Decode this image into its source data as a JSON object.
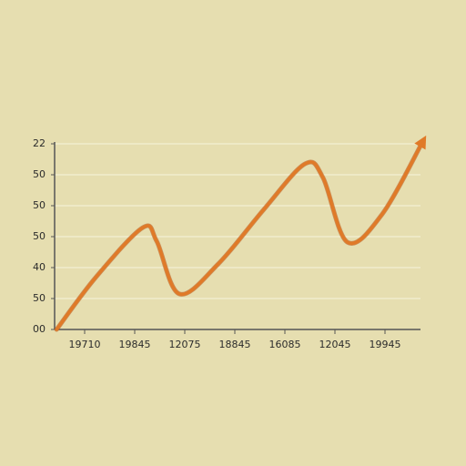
{
  "chart_data": {
    "type": "line",
    "x": [
      -0.56,
      0.22,
      1.16,
      1.44,
      1.89,
      2.67,
      3.58,
      4.4,
      4.76,
      5.25,
      5.95,
      6.76
    ],
    "series": [
      {
        "color": "#e07a28",
        "values": [
          0,
          1.68,
          3.29,
          2.85,
          1.15,
          2.12,
          3.88,
          5.35,
          4.91,
          2.82,
          3.74,
          6.09
        ]
      }
    ],
    "xlim": [
      -0.6,
      6.8
    ],
    "xticks": [
      {
        "value": 0,
        "label": "19710"
      },
      {
        "value": 1,
        "label": "19845"
      },
      {
        "value": 2,
        "label": "12075"
      },
      {
        "value": 3,
        "label": "18845"
      },
      {
        "value": 4,
        "label": "16085"
      },
      {
        "value": 5,
        "label": "12045"
      },
      {
        "value": 6,
        "label": "19945"
      }
    ],
    "ylim": [
      0,
      6
    ],
    "yticks": [
      {
        "value": 0,
        "label": "00"
      },
      {
        "value": 1,
        "label": "50"
      },
      {
        "value": 2,
        "label": "40"
      },
      {
        "value": 3,
        "label": "50"
      },
      {
        "value": 4,
        "label": "50"
      },
      {
        "value": 5,
        "label": "50"
      },
      {
        "value": 6,
        "label": "22"
      }
    ],
    "grid": true
  }
}
